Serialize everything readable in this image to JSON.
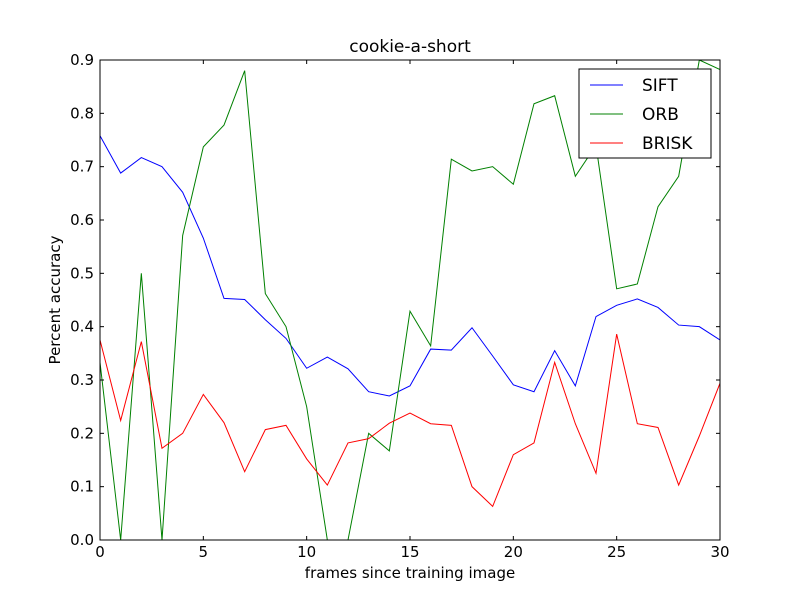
{
  "chart_data": {
    "type": "line",
    "title": "cookie-a-short",
    "xlabel": "frames since training image",
    "ylabel": "Percent accuracy",
    "xlim": [
      0,
      30
    ],
    "ylim": [
      0.0,
      0.9
    ],
    "xticks": [
      0,
      5,
      10,
      15,
      20,
      25,
      30
    ],
    "yticks": [
      0.0,
      0.1,
      0.2,
      0.3,
      0.4,
      0.5,
      0.6,
      0.7,
      0.8,
      0.9
    ],
    "xtick_labels": [
      "0",
      "5",
      "10",
      "15",
      "20",
      "25",
      "30"
    ],
    "ytick_labels": [
      "0.0",
      "0.1",
      "0.2",
      "0.3",
      "0.4",
      "0.5",
      "0.6",
      "0.7",
      "0.8",
      "0.9"
    ],
    "grid": false,
    "legend_position": "top-right",
    "x": [
      0,
      1,
      2,
      3,
      4,
      5,
      6,
      7,
      8,
      9,
      10,
      11,
      12,
      13,
      14,
      15,
      16,
      17,
      18,
      19,
      20,
      21,
      22,
      23,
      24,
      25,
      26,
      27,
      28,
      29,
      30
    ],
    "series": [
      {
        "name": "SIFT",
        "color": "#0000ff",
        "values": [
          0.758,
          0.688,
          0.717,
          0.7,
          0.652,
          0.566,
          0.453,
          0.451,
          0.413,
          0.378,
          0.322,
          0.343,
          0.321,
          0.278,
          0.27,
          0.289,
          0.358,
          0.356,
          0.398,
          0.345,
          0.291,
          0.278,
          0.355,
          0.289,
          0.419,
          0.44,
          0.452,
          0.436,
          0.403,
          0.4,
          0.375
        ]
      },
      {
        "name": "ORB",
        "color": "#008000",
        "values": [
          0.333,
          0.0,
          0.5,
          0.0,
          0.571,
          0.737,
          0.778,
          0.88,
          0.462,
          0.4,
          0.25,
          0.0,
          0.0,
          0.2,
          0.167,
          0.429,
          0.364,
          0.714,
          0.692,
          0.7,
          0.667,
          0.818,
          0.833,
          0.682,
          0.74,
          0.471,
          0.48,
          0.625,
          0.682,
          0.9,
          0.882
        ]
      },
      {
        "name": "BRISK",
        "color": "#ff0000",
        "values": [
          0.375,
          0.224,
          0.372,
          0.172,
          0.2,
          0.273,
          0.22,
          0.128,
          0.207,
          0.215,
          0.152,
          0.103,
          0.182,
          0.19,
          0.219,
          0.238,
          0.218,
          0.215,
          0.1,
          0.063,
          0.16,
          0.182,
          0.333,
          0.218,
          0.125,
          0.386,
          0.218,
          0.211,
          0.103,
          0.195,
          0.294
        ]
      }
    ]
  }
}
